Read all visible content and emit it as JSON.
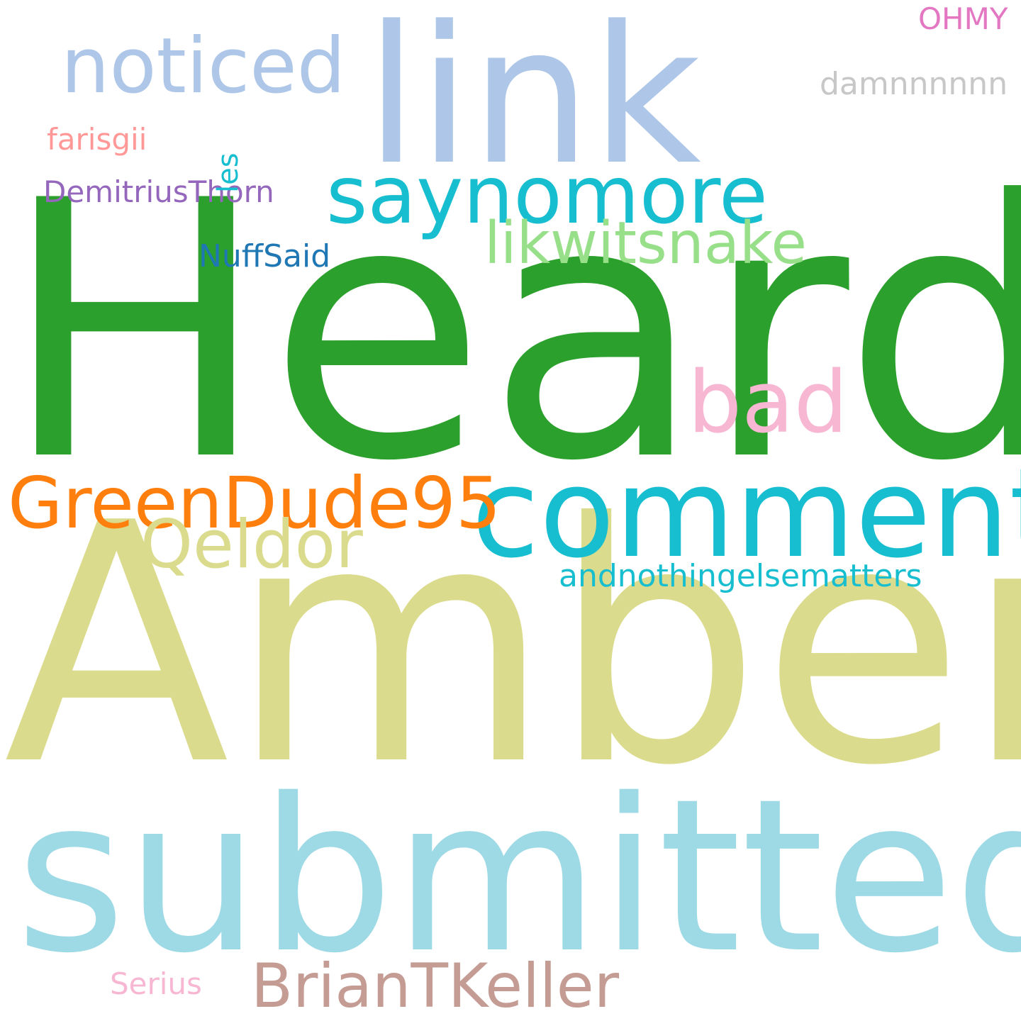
{
  "words": {
    "heard": {
      "text": "Heard",
      "color": "#2ca02c"
    },
    "amber": {
      "text": "Amber",
      "color": "#dbdb8d"
    },
    "link": {
      "text": "link",
      "color": "#aec7e8"
    },
    "submitted": {
      "text": "submitted",
      "color": "#9edae5"
    },
    "comment": {
      "text": "comment",
      "color": "#17becf"
    },
    "noticed": {
      "text": "noticed",
      "color": "#aec7e8"
    },
    "saynomore": {
      "text": "saynomore",
      "color": "#17becf"
    },
    "likwitsnake": {
      "text": "likwitsnake",
      "color": "#98df8a"
    },
    "bad": {
      "text": "bad",
      "color": "#f7b6d2"
    },
    "greendude95": {
      "text": "GreenDude95",
      "color": "#ff7f0e"
    },
    "qeldor": {
      "text": "Qeldor",
      "color": "#dbdb8d"
    },
    "briantkeller": {
      "text": "BrianTKeller",
      "color": "#c49c94"
    },
    "andnothingelsematters": {
      "text": "andnothingelsematters",
      "color": "#17becf"
    },
    "nuffsaid": {
      "text": "NuffSaid",
      "color": "#1f77b4"
    },
    "demitriusthorn": {
      "text": "DemitriusThorn",
      "color": "#9467bd"
    },
    "farisgii": {
      "text": "farisgii",
      "color": "#ff9896"
    },
    "damnnnnnn": {
      "text": "damnnnnnn",
      "color": "#c7c7c7"
    },
    "ohmy": {
      "text": "OHMY",
      "color": "#e377c2"
    },
    "serius": {
      "text": "Serius",
      "color": "#f7b6d2"
    },
    "les": {
      "text": "les",
      "color": "#17becf"
    }
  }
}
